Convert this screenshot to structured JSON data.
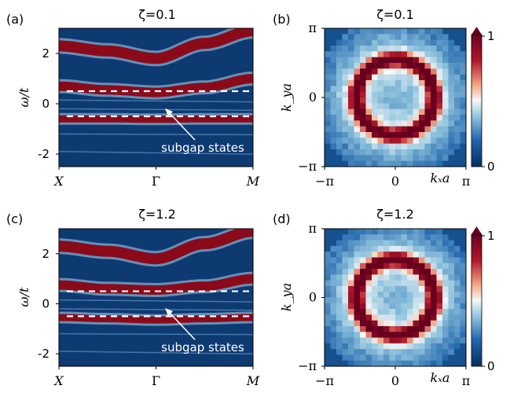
{
  "colors": {
    "cmap_low": "#053061",
    "cmap_mid": "#f7f7f7",
    "cmap_high": "#67001f",
    "band_deep": "#8b0a1a",
    "background": "#0e3a72",
    "dashed_line": "#ffffff"
  },
  "chart_data": [
    {
      "panel": "(a)",
      "type": "heatmap",
      "title": "ζ=0.1",
      "xlabel": "",
      "ylabel": "ω/t",
      "x_ticks": [
        "X",
        "Γ",
        "M"
      ],
      "y_ticks": [
        "2",
        "0",
        "-2"
      ],
      "ylim": [
        -2.5,
        3.0
      ],
      "dashed_levels": [
        0.5,
        -0.5
      ],
      "bands": [
        {
          "name": "upper",
          "x": [
            0,
            0.25,
            0.5,
            0.75,
            1.0
          ],
          "y": [
            2.3,
            2.1,
            1.8,
            2.4,
            2.9
          ]
        },
        {
          "name": "middle",
          "x": [
            0,
            0.25,
            0.5,
            0.75,
            1.0
          ],
          "y": [
            0.7,
            0.55,
            0.45,
            0.65,
            1.0
          ]
        },
        {
          "name": "lower",
          "x": [
            0,
            0.25,
            0.5,
            0.75,
            1.0
          ],
          "y": [
            -0.6,
            -0.6,
            -0.62,
            -0.6,
            -0.6
          ]
        }
      ],
      "annotation": "subgap states"
    },
    {
      "panel": "(b)",
      "type": "heatmap",
      "title": "ζ=0.1",
      "xlabel": "kₓa",
      "ylabel": "k_ya",
      "x_ticks": [
        "−π",
        "0",
        "π"
      ],
      "y_ticks": [
        "π",
        "0",
        "−π"
      ],
      "ring_radius_fraction": 0.55,
      "colorbar": {
        "ticks": [
          "1",
          "0"
        ],
        "range": [
          0,
          1
        ]
      }
    },
    {
      "panel": "(c)",
      "type": "heatmap",
      "title": "ζ=1.2",
      "xlabel": "",
      "ylabel": "ω/t",
      "x_ticks": [
        "X",
        "Γ",
        "M"
      ],
      "y_ticks": [
        "2",
        "0",
        "-2"
      ],
      "ylim": [
        -2.5,
        3.0
      ],
      "dashed_levels": [
        0.5,
        -0.5
      ],
      "bands": [
        {
          "name": "upper",
          "x": [
            0,
            0.25,
            0.5,
            0.75,
            1.0
          ],
          "y": [
            2.3,
            2.1,
            1.8,
            2.4,
            2.9
          ]
        },
        {
          "name": "middle",
          "x": [
            0,
            0.25,
            0.5,
            0.75,
            1.0
          ],
          "y": [
            0.75,
            0.6,
            0.55,
            0.7,
            1.0
          ]
        },
        {
          "name": "lower",
          "x": [
            0,
            0.25,
            0.5,
            0.75,
            1.0
          ],
          "y": [
            -0.55,
            -0.6,
            -0.65,
            -0.6,
            -0.55
          ]
        }
      ],
      "annotation": "subgap states"
    },
    {
      "panel": "(d)",
      "type": "heatmap",
      "title": "ζ=1.2",
      "xlabel": "kₓa",
      "ylabel": "k_ya",
      "x_ticks": [
        "−π",
        "0",
        "π"
      ],
      "y_ticks": [
        "π",
        "0",
        "−π"
      ],
      "ring_radius_fraction": 0.55,
      "colorbar": {
        "ticks": [
          "1",
          "0"
        ],
        "range": [
          0,
          1
        ]
      }
    }
  ]
}
